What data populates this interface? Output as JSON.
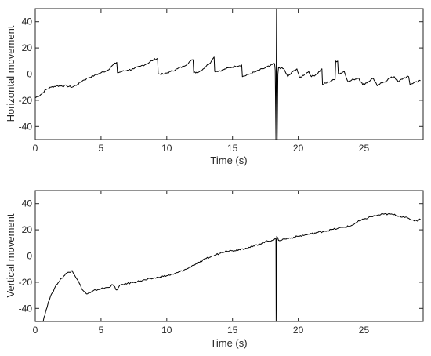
{
  "chart_data": [
    {
      "type": "line",
      "xlabel": "Time (s)",
      "ylabel": "Horizontal movement",
      "xlim": [
        0,
        29.5
      ],
      "ylim": [
        -50,
        50
      ],
      "xticks": [
        0,
        5,
        10,
        15,
        20,
        25
      ],
      "yticks": [
        -40,
        -20,
        0,
        20,
        40
      ],
      "grid": false,
      "series": [
        {
          "color": "#000000",
          "points": [
            [
              0.0,
              -18
            ],
            [
              0.2,
              -17
            ],
            [
              0.5,
              -15
            ],
            [
              0.8,
              -12
            ],
            [
              1.2,
              -10
            ],
            [
              1.6,
              -9
            ],
            [
              2.0,
              -9
            ],
            [
              2.4,
              -9
            ],
            [
              2.8,
              -10
            ],
            [
              3.2,
              -8
            ],
            [
              3.6,
              -5
            ],
            [
              4.0,
              -3
            ],
            [
              4.5,
              -1
            ],
            [
              5.0,
              1
            ],
            [
              5.5,
              3
            ],
            [
              5.8,
              6
            ],
            [
              6.2,
              9
            ],
            [
              6.25,
              1
            ],
            [
              6.6,
              2
            ],
            [
              7.0,
              3
            ],
            [
              7.5,
              4
            ],
            [
              8.0,
              6
            ],
            [
              8.5,
              8
            ],
            [
              9.0,
              11
            ],
            [
              9.3,
              12
            ],
            [
              9.35,
              0
            ],
            [
              9.8,
              0
            ],
            [
              10.3,
              2
            ],
            [
              10.8,
              4
            ],
            [
              11.3,
              6
            ],
            [
              11.8,
              10
            ],
            [
              12.0,
              11
            ],
            [
              12.05,
              1
            ],
            [
              12.5,
              2
            ],
            [
              13.0,
              6
            ],
            [
              13.4,
              10
            ],
            [
              13.6,
              13
            ],
            [
              13.65,
              2
            ],
            [
              14.2,
              3
            ],
            [
              14.8,
              5
            ],
            [
              15.2,
              6
            ],
            [
              15.7,
              7
            ],
            [
              15.75,
              -2
            ],
            [
              16.3,
              0
            ],
            [
              16.8,
              2
            ],
            [
              17.3,
              4
            ],
            [
              17.8,
              6
            ],
            [
              18.2,
              8
            ],
            [
              18.25,
              3
            ],
            [
              18.3,
              -50
            ],
            [
              18.35,
              50
            ],
            [
              18.4,
              -50
            ],
            [
              18.45,
              0
            ],
            [
              18.5,
              5
            ],
            [
              18.9,
              4
            ],
            [
              19.2,
              -2
            ],
            [
              19.6,
              2
            ],
            [
              19.9,
              4
            ],
            [
              20.1,
              -3
            ],
            [
              20.5,
              0
            ],
            [
              20.8,
              2
            ],
            [
              21.0,
              -2
            ],
            [
              21.4,
              0
            ],
            [
              21.8,
              4
            ],
            [
              21.85,
              -8
            ],
            [
              22.3,
              -6
            ],
            [
              22.8,
              -4
            ],
            [
              22.85,
              10
            ],
            [
              23.0,
              10
            ],
            [
              23.05,
              0
            ],
            [
              23.5,
              2
            ],
            [
              23.8,
              -6
            ],
            [
              24.2,
              -4
            ],
            [
              24.6,
              -3
            ],
            [
              24.9,
              -8
            ],
            [
              25.3,
              -6
            ],
            [
              25.7,
              -3
            ],
            [
              26.0,
              -9
            ],
            [
              26.5,
              -6
            ],
            [
              27.0,
              -3
            ],
            [
              27.3,
              -2
            ],
            [
              27.6,
              -6
            ],
            [
              28.0,
              -3
            ],
            [
              28.4,
              -2
            ],
            [
              28.5,
              -8
            ],
            [
              28.9,
              -6
            ],
            [
              29.3,
              -5
            ]
          ]
        }
      ]
    },
    {
      "type": "line",
      "xlabel": "Time (s)",
      "ylabel": "Vertical movement",
      "xlim": [
        0,
        29.5
      ],
      "ylim": [
        -50,
        50
      ],
      "xticks": [
        0,
        5,
        10,
        15,
        20,
        25
      ],
      "yticks": [
        -40,
        -20,
        0,
        20,
        40
      ],
      "grid": false,
      "series": [
        {
          "color": "#000000",
          "points": [
            [
              0.0,
              -50
            ],
            [
              0.3,
              -50
            ],
            [
              0.6,
              -50
            ],
            [
              0.8,
              -42
            ],
            [
              1.0,
              -35
            ],
            [
              1.3,
              -28
            ],
            [
              1.6,
              -22
            ],
            [
              2.0,
              -17
            ],
            [
              2.4,
              -13
            ],
            [
              2.8,
              -11
            ],
            [
              3.2,
              -18
            ],
            [
              3.6,
              -26
            ],
            [
              3.9,
              -29
            ],
            [
              4.2,
              -28
            ],
            [
              4.6,
              -26
            ],
            [
              5.0,
              -25
            ],
            [
              5.5,
              -24
            ],
            [
              5.9,
              -22
            ],
            [
              6.2,
              -26
            ],
            [
              6.5,
              -22
            ],
            [
              7.0,
              -21
            ],
            [
              7.5,
              -20
            ],
            [
              8.0,
              -19
            ],
            [
              8.5,
              -18
            ],
            [
              9.0,
              -17
            ],
            [
              9.5,
              -16
            ],
            [
              10.0,
              -15
            ],
            [
              10.5,
              -14
            ],
            [
              11.0,
              -12
            ],
            [
              11.5,
              -10
            ],
            [
              12.0,
              -7
            ],
            [
              12.5,
              -5
            ],
            [
              13.0,
              -2
            ],
            [
              13.5,
              0
            ],
            [
              14.0,
              2
            ],
            [
              14.5,
              4
            ],
            [
              15.0,
              4
            ],
            [
              15.5,
              5
            ],
            [
              16.0,
              6
            ],
            [
              16.5,
              7
            ],
            [
              17.0,
              9
            ],
            [
              17.5,
              11
            ],
            [
              18.0,
              12
            ],
            [
              18.3,
              13
            ],
            [
              18.32,
              -50
            ],
            [
              18.36,
              15
            ],
            [
              18.5,
              12
            ],
            [
              19.0,
              13
            ],
            [
              19.5,
              14
            ],
            [
              20.0,
              15
            ],
            [
              20.5,
              16
            ],
            [
              21.0,
              17
            ],
            [
              21.5,
              18
            ],
            [
              22.0,
              19
            ],
            [
              22.5,
              20
            ],
            [
              23.0,
              21
            ],
            [
              23.5,
              22
            ],
            [
              24.0,
              23
            ],
            [
              24.5,
              26
            ],
            [
              25.0,
              28
            ],
            [
              25.5,
              30
            ],
            [
              26.0,
              31
            ],
            [
              26.5,
              32
            ],
            [
              27.0,
              32
            ],
            [
              27.5,
              31
            ],
            [
              28.0,
              30
            ],
            [
              28.5,
              28
            ],
            [
              29.0,
              27
            ],
            [
              29.3,
              28
            ]
          ]
        }
      ]
    }
  ]
}
